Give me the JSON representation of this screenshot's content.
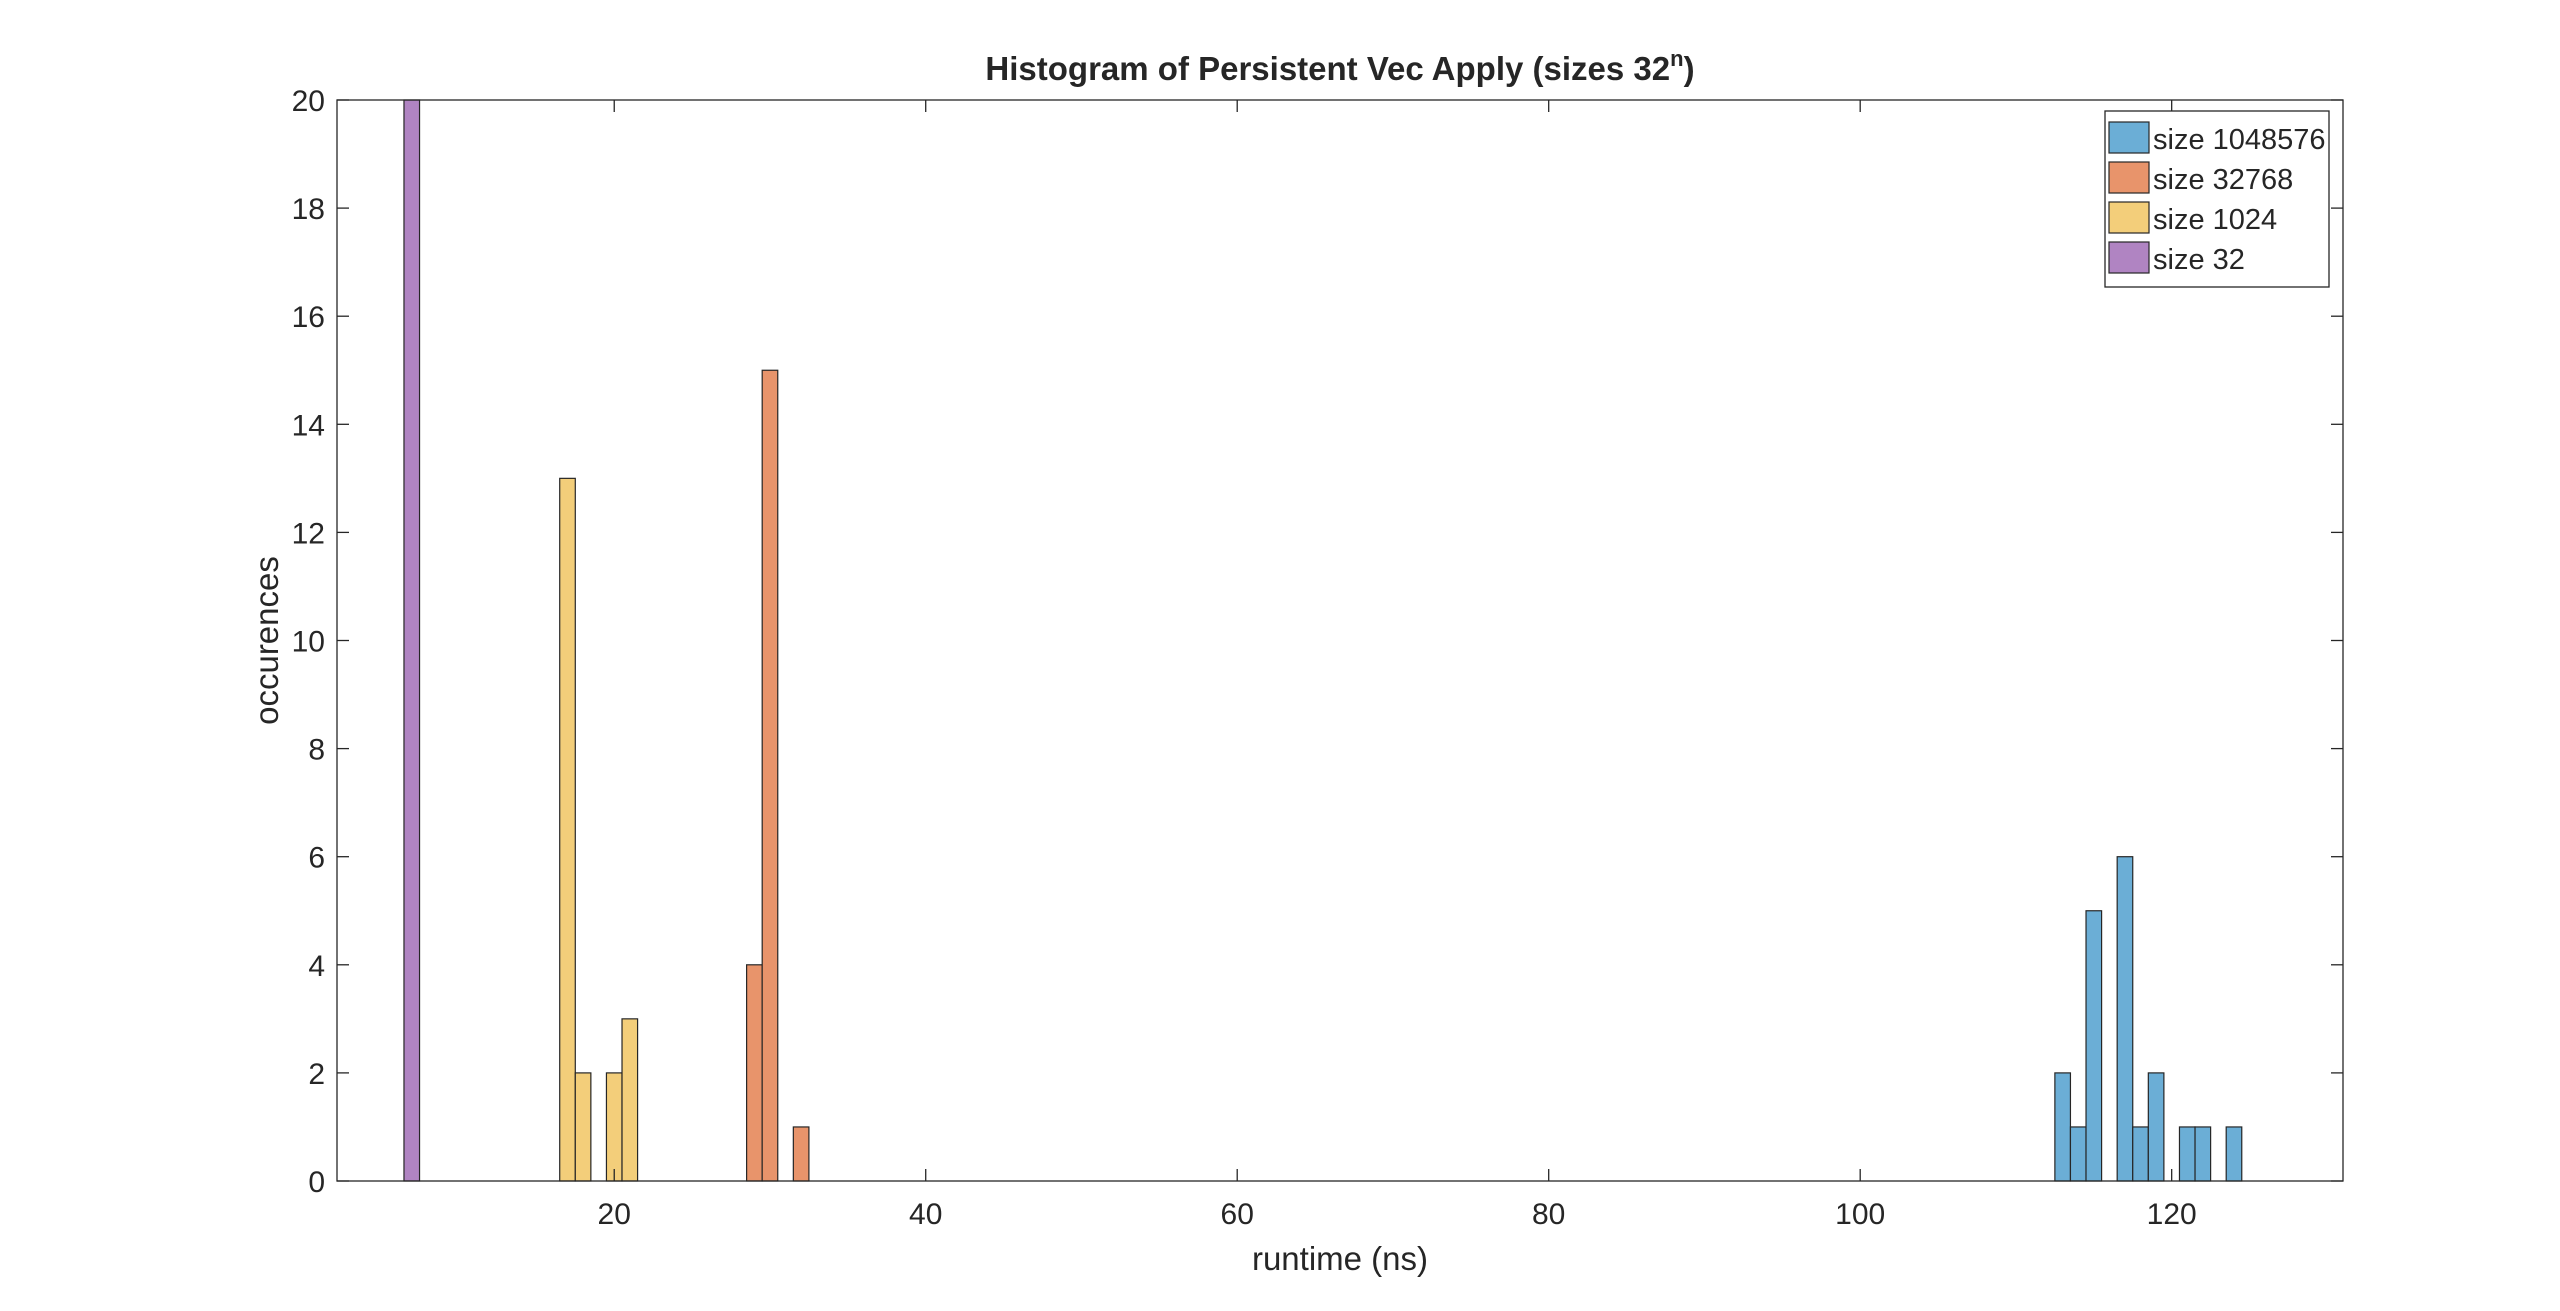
{
  "chart_data": {
    "type": "bar",
    "title": "Histogram of Persistent Vec Apply (sizes 32",
    "title_superscript": "n",
    "title_suffix": ")",
    "xlabel": "runtime (ns)",
    "ylabel": "occurences",
    "xlim": [
      2.2,
      131.0
    ],
    "ylim": [
      0,
      20
    ],
    "xticks": [
      20,
      40,
      60,
      80,
      100,
      120
    ],
    "yticks": [
      0,
      2,
      4,
      6,
      8,
      10,
      12,
      14,
      16,
      18,
      20
    ],
    "bin_width": 1,
    "grid": false,
    "legend_position": "top-right",
    "series": [
      {
        "name": "size 1048576",
        "color": "#6baed6",
        "bins": [
          {
            "x": 113,
            "count": 2
          },
          {
            "x": 114,
            "count": 1
          },
          {
            "x": 115,
            "count": 5
          },
          {
            "x": 117,
            "count": 6
          },
          {
            "x": 118,
            "count": 1
          },
          {
            "x": 119,
            "count": 2
          },
          {
            "x": 121,
            "count": 1
          },
          {
            "x": 122,
            "count": 1
          },
          {
            "x": 124,
            "count": 1
          }
        ]
      },
      {
        "name": "size 32768",
        "color": "#e8946b",
        "bins": [
          {
            "x": 29,
            "count": 4
          },
          {
            "x": 30,
            "count": 15
          },
          {
            "x": 32,
            "count": 1
          }
        ]
      },
      {
        "name": "size 1024",
        "color": "#f3ce7a",
        "bins": [
          {
            "x": 17,
            "count": 13
          },
          {
            "x": 18,
            "count": 2
          },
          {
            "x": 20,
            "count": 2
          },
          {
            "x": 21,
            "count": 3
          }
        ]
      },
      {
        "name": "size 32",
        "color": "#b084c2",
        "bins": [
          {
            "x": 7,
            "count": 20
          }
        ]
      }
    ]
  }
}
